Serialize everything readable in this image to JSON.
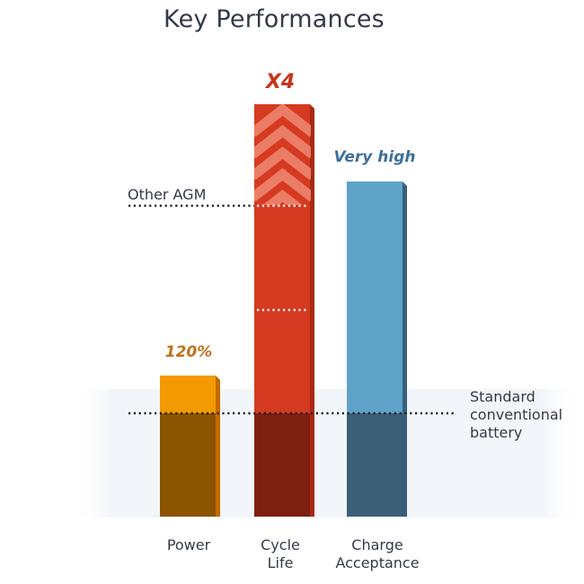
{
  "title": "Key Performances",
  "chart_data": {
    "type": "bar",
    "categories": [
      [
        "Power"
      ],
      [
        "Cycle",
        "Life"
      ],
      [
        "Charge",
        "Acceptance"
      ]
    ],
    "reference_lines": [
      {
        "label": [
          "Other AGM"
        ]
      },
      {
        "label": [
          "Standard",
          "conventional",
          "battery"
        ]
      }
    ],
    "series": [
      {
        "category": "Power",
        "annotation": "120%",
        "annotation_color": "#c0701a",
        "top_color": "#f29a00",
        "base_color": "#8b5400",
        "side_color": "#c46a00",
        "value": 1.2
      },
      {
        "category": "Cycle Life",
        "annotation": "X4",
        "annotation_color": "#c8341b",
        "top_color": "#d63a20",
        "base_color": "#7d2010",
        "side_color": "#a82a14",
        "value": 4.0
      },
      {
        "category": "Charge Acceptance",
        "annotation": "Very high",
        "annotation_color": "#3f6f9a",
        "top_color": "#5fa3c9",
        "base_color": "#3c5f78",
        "side_color": "#37607e",
        "value": null
      }
    ],
    "grid": false
  }
}
